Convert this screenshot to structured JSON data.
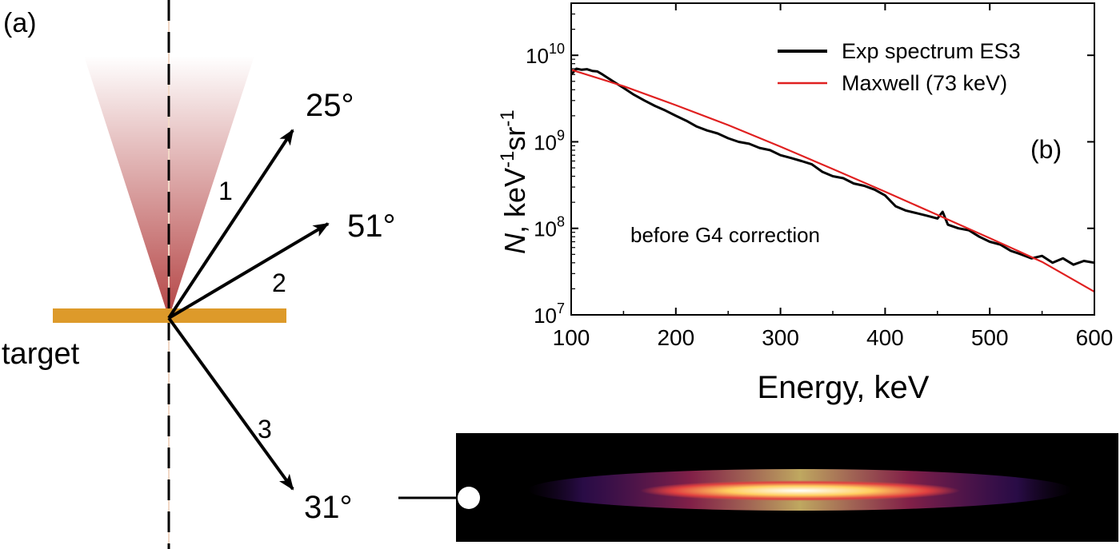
{
  "panel_a": {
    "label": "(a)",
    "target_label": "target",
    "target_color": "#DD9A2A",
    "cone_color": "#B03A3A",
    "arrows": [
      {
        "number": "1",
        "angle": "25°"
      },
      {
        "number": "2",
        "angle": "51°"
      },
      {
        "number": "3",
        "angle": "31°"
      }
    ]
  },
  "detector": {
    "colormap": "inferno-like",
    "background_color": "#000000"
  },
  "chart_data": {
    "type": "line",
    "panel_label": "(b)",
    "annotation": "before G4 correction",
    "xlabel": "Energy, keV",
    "ylabel_main": "N",
    "ylabel_unit": ", keV",
    "ylabel_sup1": "-1",
    "ylabel_mid": "sr",
    "ylabel_sup2": "-1",
    "xlim": [
      100,
      600
    ],
    "ylim": [
      10000000,
      40000000000
    ],
    "yscale": "log",
    "xticks": [
      100,
      200,
      300,
      400,
      500,
      600
    ],
    "yticks": [
      {
        "value": 10000000,
        "base": "10",
        "exp": "7"
      },
      {
        "value": 100000000,
        "base": "10",
        "exp": "8"
      },
      {
        "value": 1000000000,
        "base": "10",
        "exp": "9"
      },
      {
        "value": 10000000000,
        "base": "10",
        "exp": "10"
      }
    ],
    "legend_position": "top-right",
    "series": [
      {
        "name": "Exp spectrum ES3",
        "color": "#000000",
        "x": [
          100,
          105,
          110,
          115,
          120,
          125,
          130,
          140,
          150,
          160,
          170,
          180,
          190,
          200,
          210,
          220,
          230,
          240,
          250,
          260,
          270,
          280,
          290,
          300,
          310,
          320,
          330,
          340,
          350,
          360,
          370,
          380,
          390,
          400,
          410,
          420,
          430,
          440,
          450,
          455,
          460,
          470,
          480,
          490,
          500,
          510,
          520,
          530,
          540,
          550,
          560,
          570,
          580,
          590,
          600
        ],
        "y": [
          6000000000,
          7000000000,
          6800000000,
          6900000000,
          6600000000,
          6500000000,
          6000000000,
          5000000000,
          4200000000,
          3500000000,
          3000000000,
          2600000000,
          2300000000,
          2000000000,
          1750000000,
          1500000000,
          1350000000,
          1250000000,
          1100000000,
          1000000000,
          950000000,
          850000000,
          800000000,
          700000000,
          650000000,
          600000000,
          550000000,
          450000000,
          400000000,
          380000000,
          330000000,
          310000000,
          280000000,
          240000000,
          180000000,
          160000000,
          150000000,
          140000000,
          130000000,
          155000000,
          110000000,
          100000000,
          95000000,
          80000000,
          70000000,
          65000000,
          55000000,
          50000000,
          45000000,
          48000000,
          40000000,
          45000000,
          38000000,
          42000000,
          40000000
        ]
      },
      {
        "name": "Maxwell (73 keV)",
        "color": "#E02020",
        "x": [
          100,
          150,
          200,
          250,
          300,
          350,
          400,
          450,
          500,
          550,
          600
        ],
        "y": [
          6800000000,
          4400000000,
          2650000000,
          1560000000,
          880000000,
          485000000,
          265000000,
          143000000,
          77000000,
          41000000,
          18500000
        ]
      }
    ]
  }
}
